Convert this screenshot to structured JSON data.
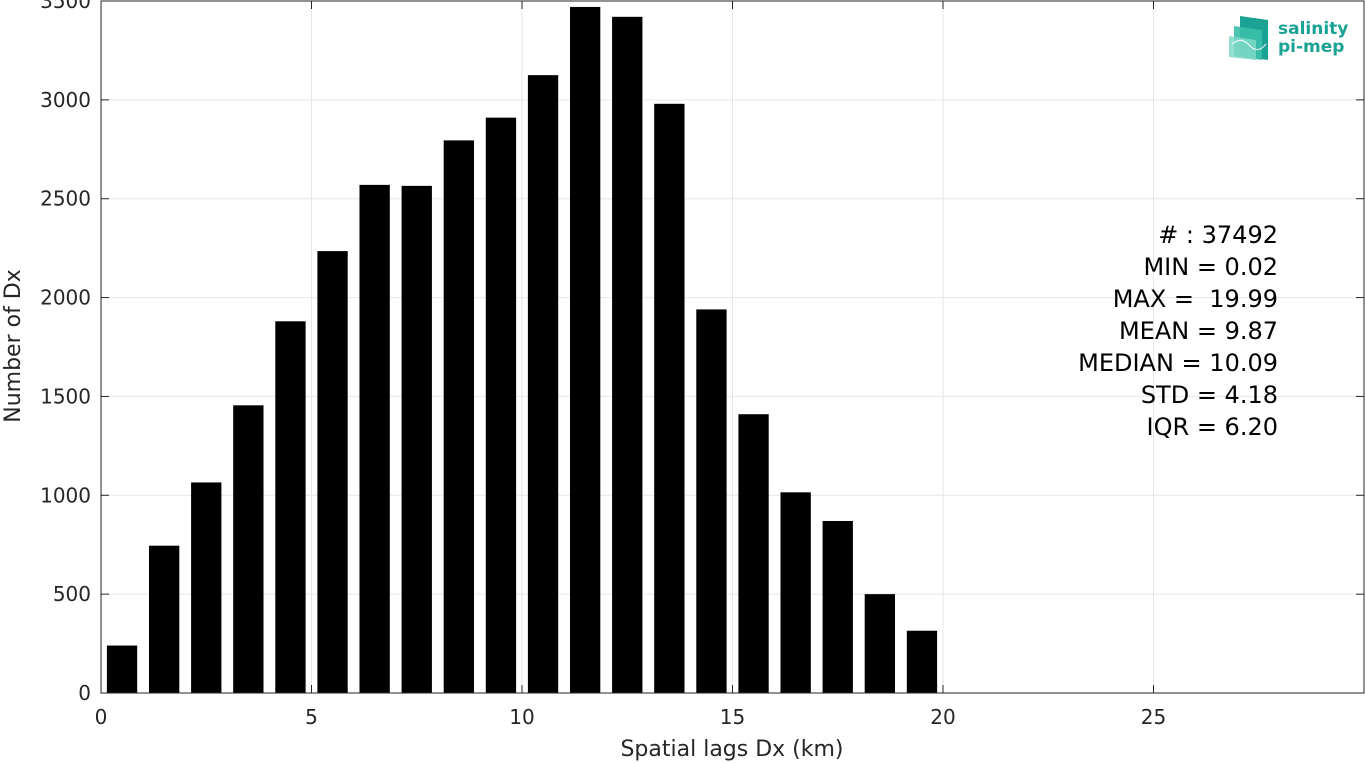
{
  "chart_data": {
    "type": "bar",
    "title": "",
    "xlabel": "Spatial lags Dx (km)",
    "ylabel": "Number of Dx",
    "xlim": [
      0,
      30
    ],
    "ylim": [
      0,
      3500
    ],
    "xticks": [
      0,
      5,
      10,
      15,
      20,
      25
    ],
    "yticks": [
      0,
      500,
      1000,
      1500,
      2000,
      2500,
      3000,
      3500
    ],
    "grid": true,
    "bar_color": "#000000",
    "bins": [
      [
        0,
        1
      ],
      [
        1,
        2
      ],
      [
        2,
        3
      ],
      [
        3,
        4
      ],
      [
        4,
        5
      ],
      [
        5,
        6
      ],
      [
        6,
        7
      ],
      [
        7,
        8
      ],
      [
        8,
        9
      ],
      [
        9,
        10
      ],
      [
        10,
        11
      ],
      [
        11,
        12
      ],
      [
        12,
        13
      ],
      [
        13,
        14
      ],
      [
        14,
        15
      ],
      [
        15,
        16
      ],
      [
        16,
        17
      ],
      [
        17,
        18
      ],
      [
        18,
        19
      ],
      [
        19,
        20
      ]
    ],
    "values": [
      240,
      745,
      1065,
      1455,
      1880,
      2235,
      2570,
      2565,
      2795,
      2910,
      3125,
      3470,
      3420,
      2980,
      1940,
      1410,
      1015,
      870,
      500,
      315
    ]
  },
  "stats": [
    "# : 37492",
    "MIN = 0.02",
    "MAX =  19.99",
    "MEAN = 9.87",
    "MEDIAN = 10.09",
    "STD = 4.18",
    "IQR = 6.20"
  ],
  "logo": {
    "line1": "salinity",
    "line2": "pi-mep",
    "color": "#1aa394"
  }
}
